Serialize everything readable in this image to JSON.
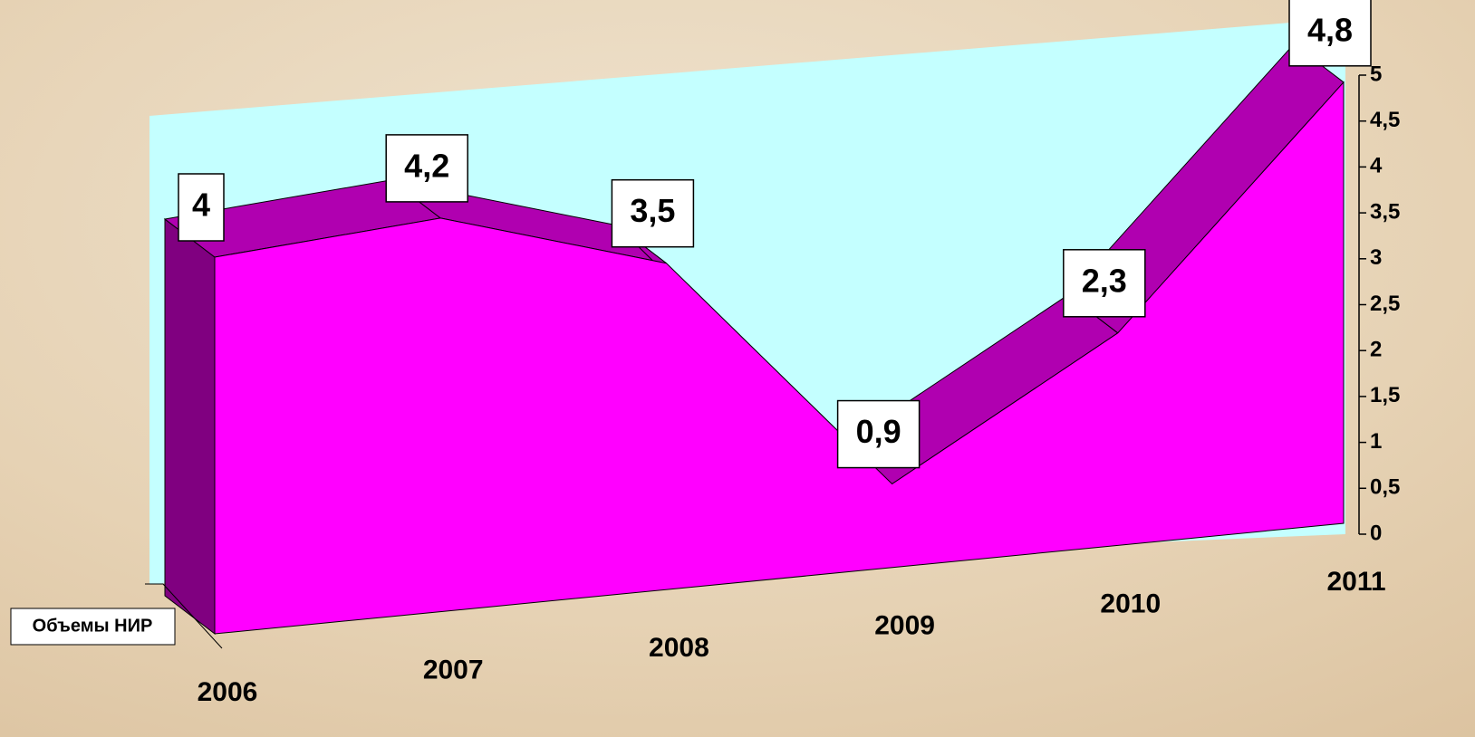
{
  "chart_data": {
    "type": "area",
    "categories": [
      "2006",
      "2007",
      "2008",
      "2009",
      "2010",
      "2011"
    ],
    "series": [
      {
        "name": "Объемы НИР",
        "color": "#ff00ff",
        "values": [
          4,
          4.2,
          3.5,
          0.9,
          2.3,
          4.8
        ],
        "value_labels": [
          "4",
          "4,2",
          "3,5",
          "0,9",
          "2,3",
          "4,8"
        ]
      }
    ],
    "ylim": [
      0,
      5
    ],
    "yticks": [
      0,
      {
        "value": 0.5,
        "label": "0,5"
      },
      1,
      {
        "value": 1.5,
        "label": "1,5"
      },
      2,
      {
        "value": 2.5,
        "label": "2,5"
      },
      3,
      {
        "value": 3.5,
        "label": "3,5"
      },
      4,
      {
        "value": 4.5,
        "label": "4,5"
      },
      5
    ]
  }
}
